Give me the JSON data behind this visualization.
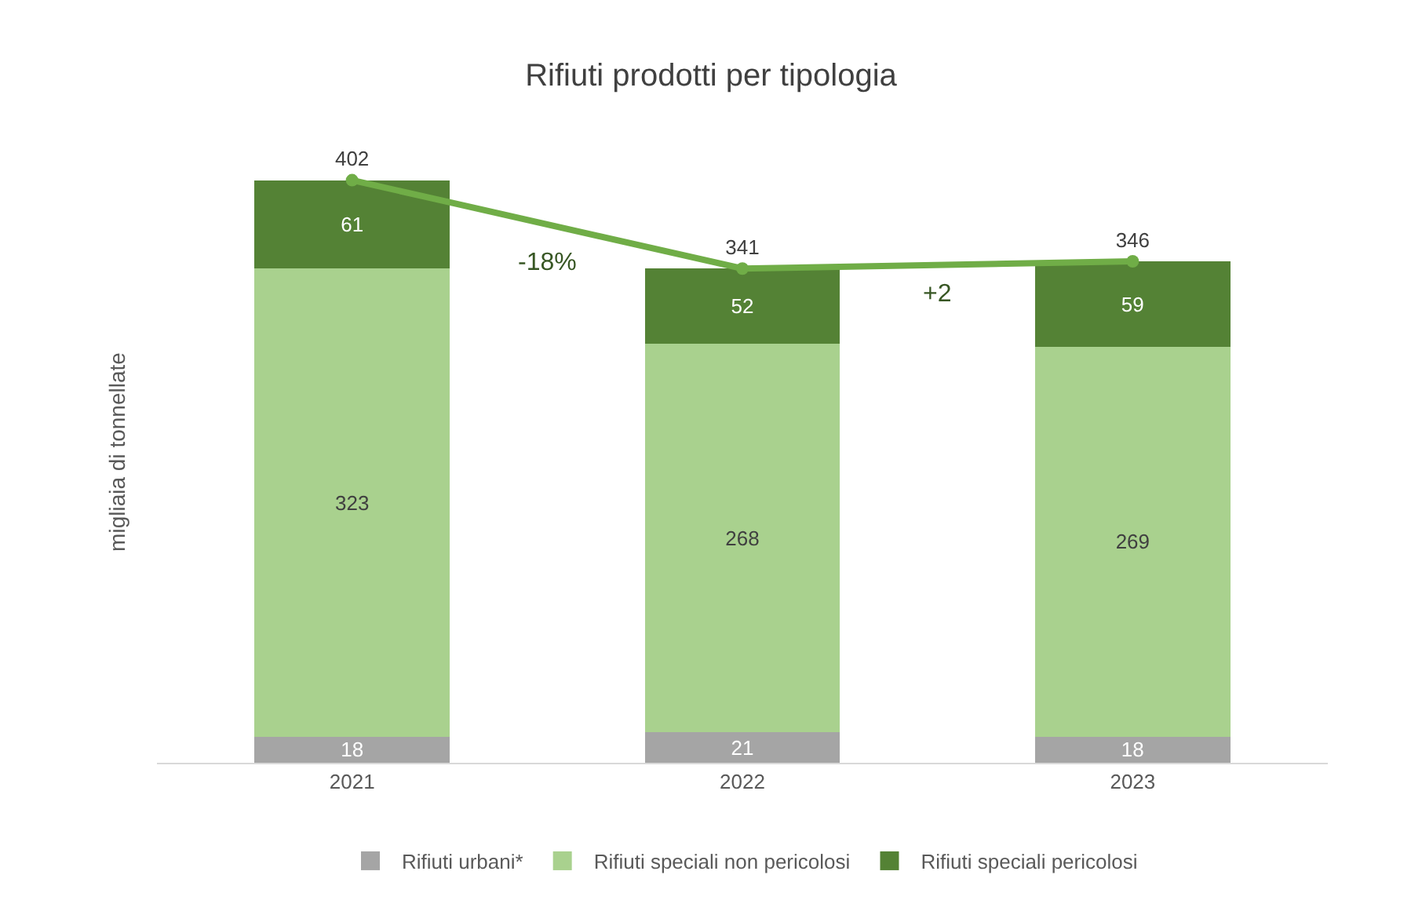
{
  "chart_data": {
    "type": "bar",
    "title": "Rifiuti prodotti per tipologia",
    "ylabel": "migliaia di tonnellate",
    "categories": [
      "2021",
      "2022",
      "2023"
    ],
    "stacked": true,
    "data_labels": true,
    "legend": "bottom",
    "series": [
      {
        "name": "Rifiuti urbani*",
        "color": "#a5a5a5",
        "values": [
          18,
          21,
          18
        ]
      },
      {
        "name": "Rifiuti speciali non pericolosi",
        "color": "#a9d18e",
        "values": [
          323,
          268,
          269
        ]
      },
      {
        "name": "Rifiuti speciali pericolosi",
        "color": "#548235",
        "values": [
          61,
          52,
          59
        ]
      },
      {
        "type": "line",
        "color": "#70ad47",
        "values": [
          402,
          341,
          346
        ],
        "marker": "circle"
      }
    ],
    "annotations": [
      "-18%",
      "+2"
    ]
  }
}
